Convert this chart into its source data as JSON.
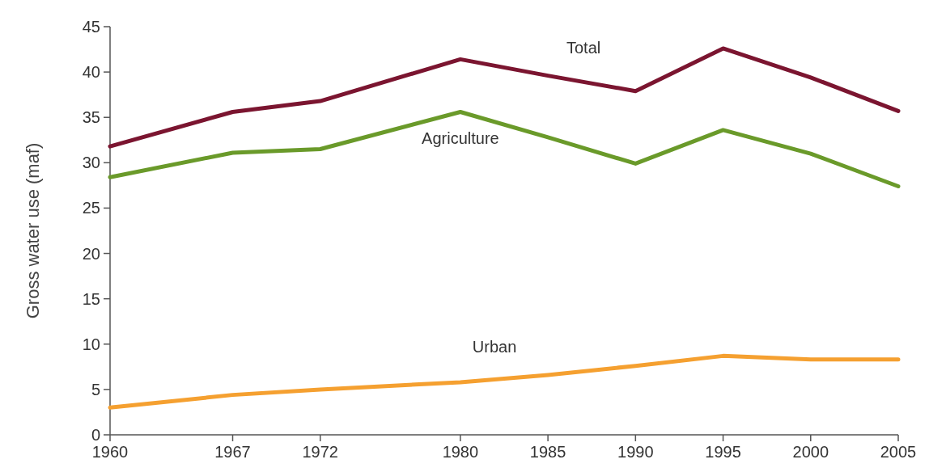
{
  "chart_data": {
    "type": "line",
    "ylabel": "Gross water use (maf)",
    "x": [
      1960,
      1967,
      1972,
      1980,
      1985,
      1990,
      1995,
      2000,
      2005
    ],
    "xlim": [
      1960,
      2005
    ],
    "xticks": [
      1960,
      1967,
      1972,
      1980,
      1985,
      1990,
      1995,
      2000,
      2005
    ],
    "ylim": [
      0,
      45
    ],
    "yticks": [
      0,
      5,
      10,
      15,
      20,
      25,
      30,
      35,
      40,
      45
    ],
    "grid": false,
    "marker": "none",
    "line_style": "solid",
    "series": [
      {
        "name": "Total",
        "color": "#7b1530",
        "values": [
          31.8,
          35.6,
          36.8,
          41.4,
          39.6,
          37.9,
          42.6,
          39.4,
          35.7
        ]
      },
      {
        "name": "Agriculture",
        "color": "#6a9a2a",
        "values": [
          28.4,
          31.1,
          31.5,
          35.6,
          32.8,
          29.9,
          33.6,
          31.0,
          27.4
        ]
      },
      {
        "name": "Urban",
        "color": "#f5a030",
        "values": [
          3.0,
          4.4,
          5.0,
          5.8,
          6.6,
          7.6,
          8.7,
          8.3,
          8.3
        ]
      }
    ]
  }
}
